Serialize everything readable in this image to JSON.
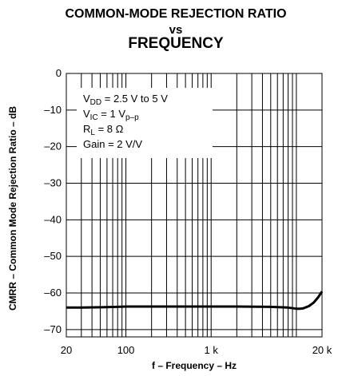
{
  "chart_data": {
    "type": "line",
    "title_lines": [
      "COMMON-MODE REJECTION RATIO",
      "vs",
      "FREQUENCY"
    ],
    "xlabel": "f – Frequency – Hz",
    "ylabel": "CMRR – Common Mode Rejection Ratio – dB",
    "x_scale": "log",
    "xlim": [
      20,
      20000
    ],
    "ylim": [
      -72,
      0
    ],
    "x_ticks": [
      {
        "value": 20,
        "label": "20"
      },
      {
        "value": 100,
        "label": "100"
      },
      {
        "value": 1000,
        "label": "1 k"
      },
      {
        "value": 20000,
        "label": "20 k"
      }
    ],
    "y_ticks": [
      0,
      -10,
      -20,
      -30,
      -40,
      -50,
      -60,
      -70
    ],
    "grid": true,
    "conditions": [
      {
        "base": "V",
        "sub": "DD",
        "rest": " = 2.5 V to 5 V"
      },
      {
        "base": "V",
        "sub": "IC",
        "rest": " = 1 V",
        "sub2": "p–p"
      },
      {
        "base": "R",
        "sub": "L",
        "rest": " = 8 Ω"
      },
      {
        "base": "Gain = 2 V/V",
        "sub": "",
        "rest": ""
      }
    ],
    "series": [
      {
        "x": [
          20,
          30,
          50,
          80,
          100,
          200,
          500,
          1000,
          2000,
          5000,
          8000,
          10000,
          11000,
          12000,
          14000,
          16000,
          18000,
          20000
        ],
        "y": [
          -64,
          -64,
          -63.9,
          -63.8,
          -63.7,
          -63.7,
          -63.7,
          -63.7,
          -63.7,
          -63.8,
          -64,
          -64.3,
          -64.3,
          -64.2,
          -63.6,
          -62.6,
          -61.2,
          -59.6
        ]
      }
    ]
  }
}
